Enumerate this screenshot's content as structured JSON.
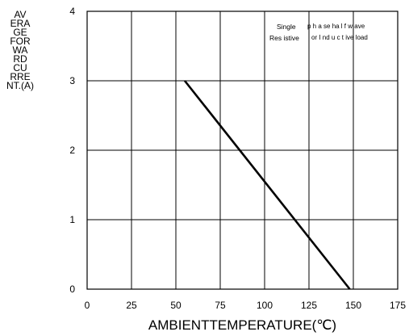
{
  "chart_data": {
    "type": "line",
    "title": "",
    "ylabel_lines": [
      "AV",
      "ERA",
      "GE",
      "FOR",
      "WA",
      "RD",
      "CU",
      "RRE",
      "NT.(A)"
    ],
    "xlabel": "AMBIENTTEMPERATURE(℃)",
    "xlim": [
      0,
      175
    ],
    "ylim": [
      0,
      4
    ],
    "x_ticks": [
      "0",
      "25",
      "50",
      "75",
      "100",
      "125",
      "150",
      "175"
    ],
    "y_ticks": [
      "0",
      "1",
      "2",
      "3",
      "4"
    ],
    "grid": true,
    "annotation": {
      "line1_left": "Single",
      "line1_right": "p h a se ha l f w ave",
      "line2_left": "Res istive",
      "line2_right": "or I nd u c t ive load"
    },
    "series": [
      {
        "x": [
          55,
          148
        ],
        "y": [
          3,
          0
        ]
      }
    ]
  }
}
